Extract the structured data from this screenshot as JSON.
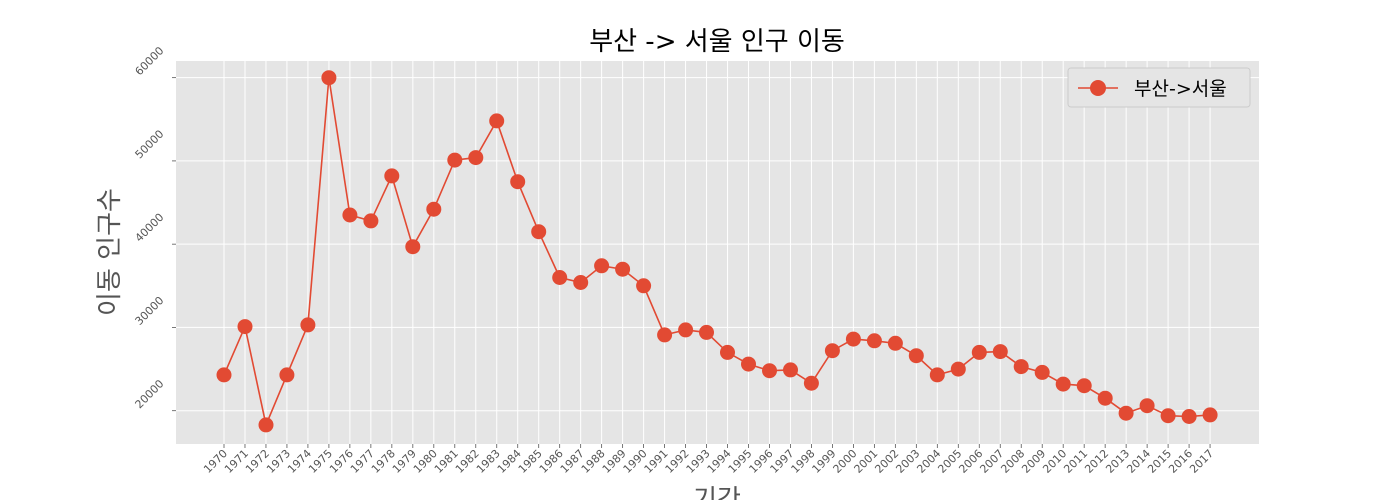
{
  "chart_data": {
    "type": "line",
    "title": "부산 -> 서울 인구 이동",
    "xlabel": "기간",
    "ylabel": "이동 인구수",
    "x": [
      "1970",
      "1971",
      "1972",
      "1973",
      "1974",
      "1975",
      "1976",
      "1977",
      "1978",
      "1979",
      "1980",
      "1981",
      "1982",
      "1983",
      "1984",
      "1985",
      "1986",
      "1987",
      "1988",
      "1989",
      "1990",
      "1991",
      "1992",
      "1993",
      "1994",
      "1995",
      "1996",
      "1997",
      "1998",
      "1999",
      "2000",
      "2001",
      "2002",
      "2003",
      "2004",
      "2005",
      "2006",
      "2007",
      "2008",
      "2009",
      "2010",
      "2011",
      "2012",
      "2013",
      "2014",
      "2015",
      "2016",
      "2017"
    ],
    "series": [
      {
        "name": "부산->서울",
        "values": [
          24300,
          30100,
          18300,
          24300,
          30300,
          60000,
          43500,
          42800,
          48200,
          39700,
          44200,
          50100,
          50400,
          54800,
          47500,
          41500,
          36000,
          35400,
          37400,
          37000,
          35000,
          29100,
          29700,
          29400,
          27000,
          25600,
          24800,
          24900,
          23300,
          27200,
          28600,
          28400,
          28100,
          26600,
          24300,
          25000,
          27000,
          27100,
          25300,
          24600,
          23200,
          23000,
          21500,
          19700,
          20600,
          19400,
          19300,
          19500
        ],
        "color": "#e24a33"
      }
    ],
    "yticks": [
      20000,
      30000,
      40000,
      50000,
      60000
    ],
    "ylim": [
      16000,
      62000
    ],
    "grid": true,
    "legend": "top-right",
    "style": {
      "background": "#e5e5e5",
      "grid_color": "#ffffff"
    }
  }
}
